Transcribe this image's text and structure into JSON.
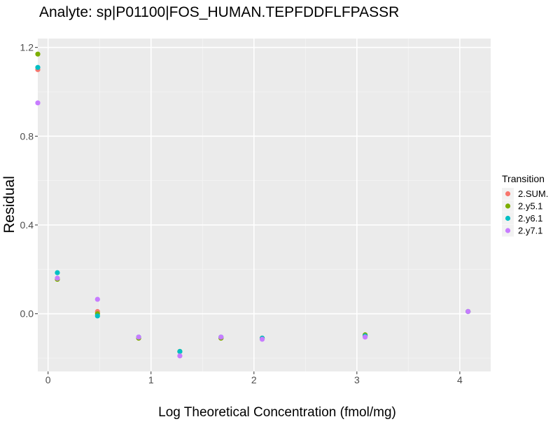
{
  "chart_data": {
    "type": "scatter",
    "title": "Analyte: sp|P01100|FOS_HUMAN.TEPFDDFLFPASSR",
    "xlabel": "Log Theoretical Concentration (fmol/mg)",
    "ylabel": "Residual",
    "xlim": [
      -0.1,
      4.3
    ],
    "ylim": [
      -0.26,
      1.24
    ],
    "x_ticks": [
      0,
      1,
      2,
      3,
      4
    ],
    "x_tick_labels": [
      "0",
      "1",
      "2",
      "3",
      "4"
    ],
    "y_ticks": [
      0.0,
      0.4,
      0.8,
      1.2
    ],
    "y_tick_labels": [
      "0.0",
      "0.4",
      "0.8",
      "1.2"
    ],
    "grid": true,
    "legend": {
      "title": "Transition",
      "position": "right"
    },
    "series": [
      {
        "name": "2.SUM.",
        "color": "#F8766D",
        "x": [
          -0.1,
          0.09,
          0.48,
          0.88,
          1.28,
          1.68,
          2.08,
          3.08,
          4.08
        ],
        "y": [
          1.1,
          0.16,
          0.01,
          -0.11,
          -0.17,
          -0.11,
          -0.11,
          -0.1,
          0.01
        ]
      },
      {
        "name": "2.y5.1",
        "color": "#7CAE00",
        "x": [
          -0.1,
          0.09,
          0.48,
          0.88,
          1.28,
          1.68,
          2.08,
          3.08,
          4.08
        ],
        "y": [
          1.17,
          0.155,
          0.0,
          -0.11,
          -0.17,
          -0.11,
          -0.11,
          -0.095,
          0.01
        ]
      },
      {
        "name": "2.y6.1",
        "color": "#00BFC4",
        "x": [
          -0.1,
          0.09,
          0.48,
          0.88,
          1.28,
          1.68,
          2.08,
          3.08,
          4.08
        ],
        "y": [
          1.11,
          0.185,
          -0.01,
          -0.105,
          -0.17,
          -0.105,
          -0.11,
          -0.1,
          0.01
        ]
      },
      {
        "name": "2.y7.1",
        "color": "#C77CFF",
        "x": [
          -0.1,
          0.09,
          0.48,
          0.88,
          1.28,
          1.68,
          2.08,
          3.08,
          4.08
        ],
        "y": [
          0.95,
          0.16,
          0.065,
          -0.105,
          -0.19,
          -0.105,
          -0.115,
          -0.105,
          0.01
        ]
      }
    ]
  }
}
